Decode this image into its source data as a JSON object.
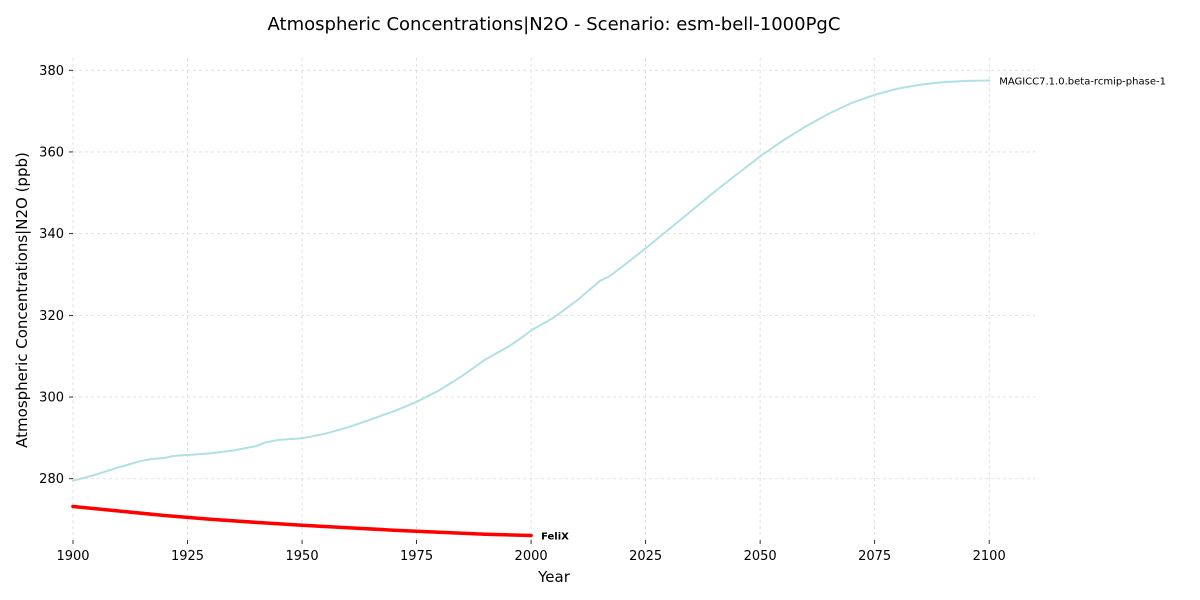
{
  "chart_data": {
    "type": "line",
    "title": "Atmospheric Concentrations|N2O - Scenario: esm-bell-1000PgC",
    "xlabel": "Year",
    "ylabel": "Atmospheric Concentrations|N2O (ppb)",
    "xlim": [
      1900,
      2110
    ],
    "ylim": [
      265,
      383
    ],
    "x_ticks": [
      1900,
      1925,
      1950,
      1975,
      2000,
      2025,
      2050,
      2075,
      2100
    ],
    "y_ticks": [
      280,
      300,
      320,
      340,
      360,
      380
    ],
    "grid": true,
    "legend": "none",
    "series": [
      {
        "name": "MAGICC7.1.0.beta-rcmip-phase-1",
        "color": "#b0e0e6",
        "label_bold": false,
        "x": [
          1900,
          1905,
          1910,
          1915,
          1917,
          1920,
          1922,
          1925,
          1930,
          1935,
          1940,
          1942,
          1945,
          1950,
          1955,
          1960,
          1965,
          1970,
          1975,
          1980,
          1985,
          1987,
          1990,
          1995,
          1998,
          2000,
          2005,
          2010,
          2015,
          2017,
          2020,
          2025,
          2030,
          2035,
          2040,
          2045,
          2050,
          2055,
          2060,
          2065,
          2070,
          2075,
          2080,
          2085,
          2090,
          2095,
          2100
        ],
        "values": [
          279.5,
          281.0,
          282.8,
          284.4,
          284.8,
          285.1,
          285.6,
          285.8,
          286.2,
          286.9,
          288.0,
          288.9,
          289.5,
          289.9,
          291.0,
          292.6,
          294.5,
          296.5,
          298.8,
          301.7,
          305.2,
          306.8,
          309.2,
          312.3,
          314.6,
          316.3,
          319.5,
          323.6,
          328.4,
          329.5,
          332.0,
          336.4,
          341.0,
          345.6,
          350.2,
          354.6,
          358.9,
          362.8,
          366.3,
          369.4,
          372.0,
          374.0,
          375.5,
          376.5,
          377.1,
          377.4,
          377.5
        ]
      },
      {
        "name": "FeliX",
        "color": "#ff0000",
        "label_bold": true,
        "x": [
          1900,
          1910,
          1920,
          1930,
          1940,
          1950,
          1960,
          1970,
          1980,
          1990,
          2000
        ],
        "values": [
          273.2,
          272.1,
          271.0,
          270.1,
          269.3,
          268.6,
          268.0,
          267.4,
          266.9,
          266.4,
          266.1
        ]
      }
    ]
  }
}
